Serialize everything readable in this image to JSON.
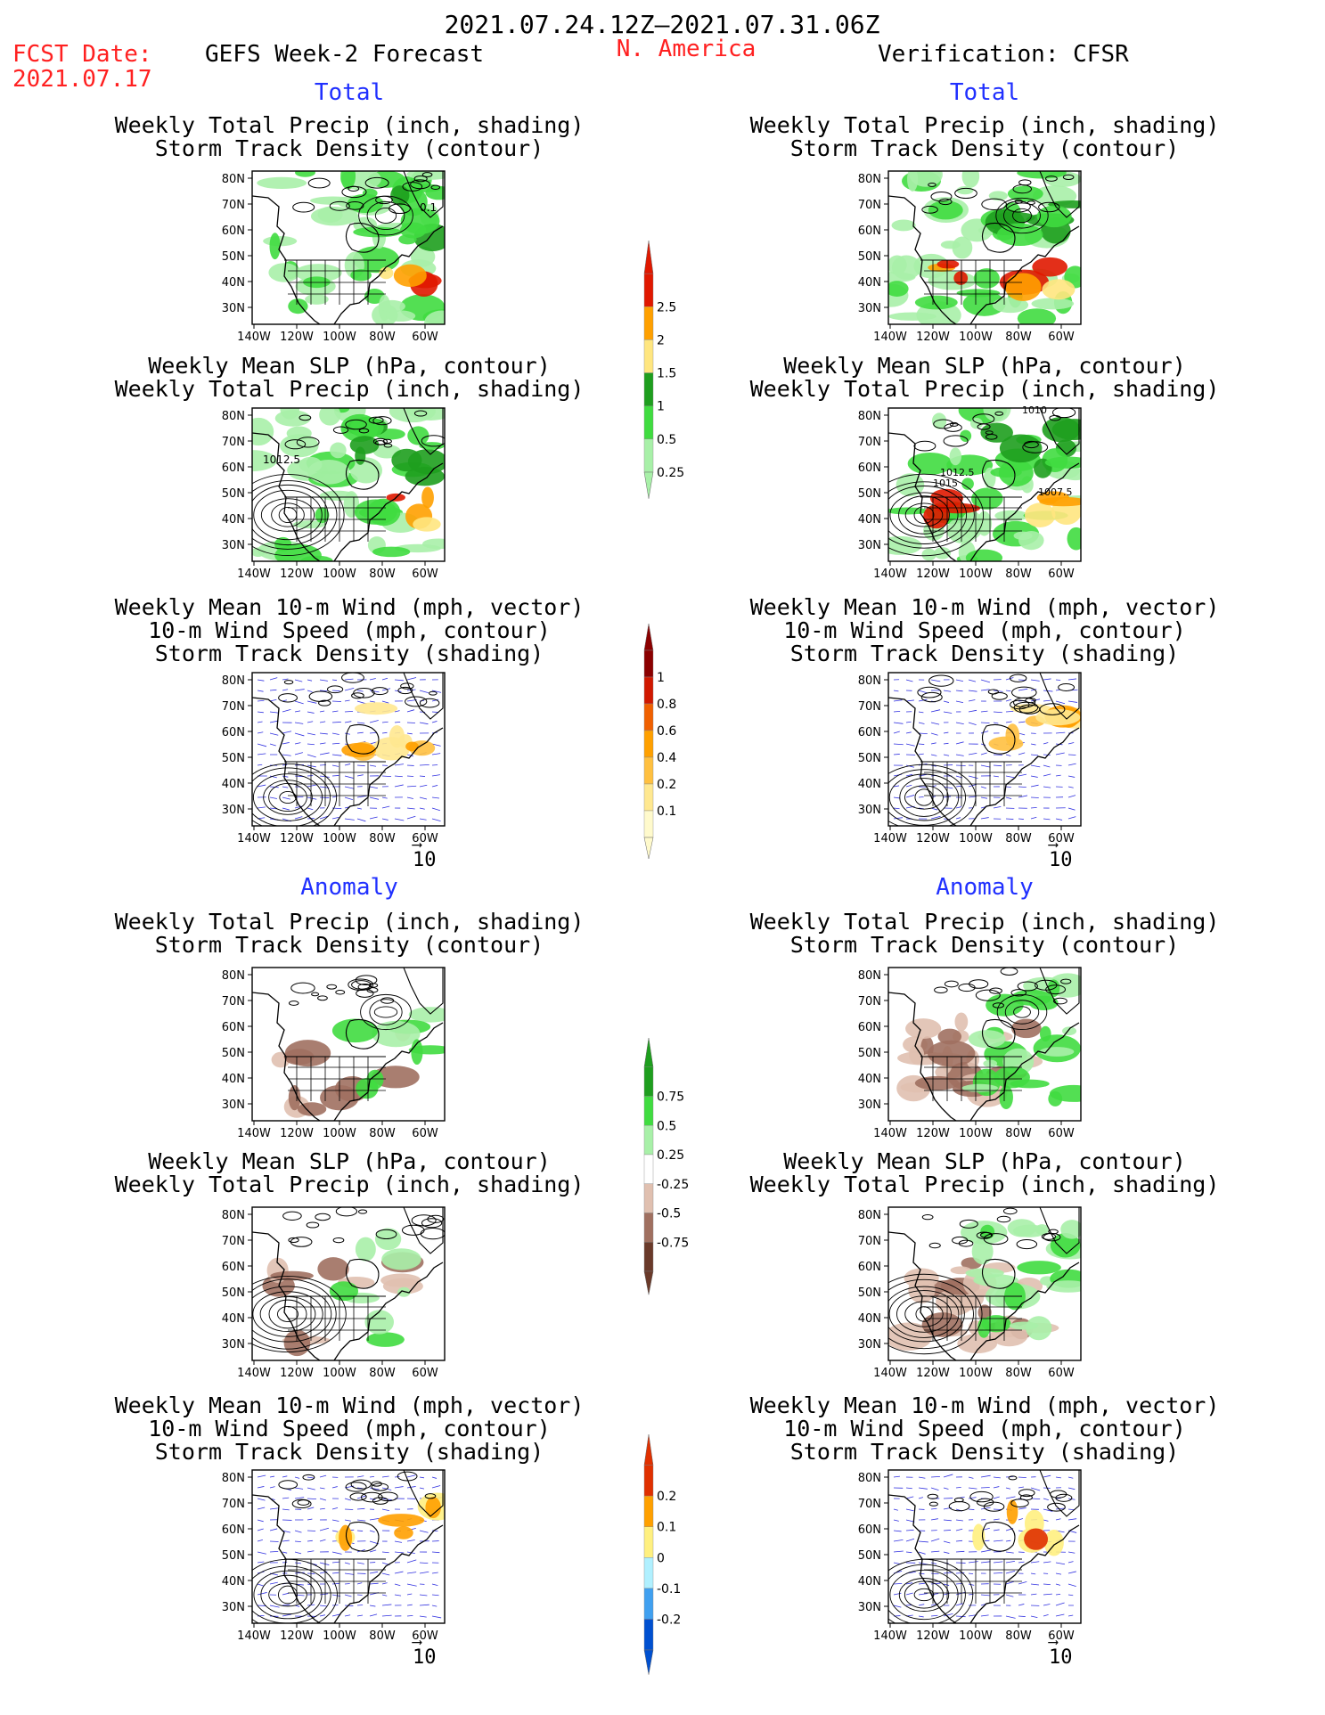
{
  "header": {
    "period": "2021.07.24.12Z–2021.07.31.06Z",
    "fcst_label": "FCST Date:",
    "fcst_date": "2021.07.17",
    "model": "GEFS Week-2 Forecast",
    "region": "N. America",
    "verification": "Verification: CFSR"
  },
  "sections": {
    "total": "Total",
    "anomaly": "Anomaly"
  },
  "panel_titles": {
    "precip_track": [
      "Weekly Total Precip (inch, shading)",
      "Storm Track Density (contour)"
    ],
    "slp_precip": [
      "Weekly Mean SLP (hPa, contour)",
      "Weekly Total Precip (inch, shading)"
    ],
    "wind_track": [
      "Weekly Mean 10-m Wind (mph, vector)",
      "10-m Wind Speed (mph, contour)",
      "Storm Track Density (shading)"
    ]
  },
  "axes": {
    "lat_ticks": [
      "80N",
      "70N",
      "60N",
      "50N",
      "40N",
      "30N"
    ],
    "lon_ticks": [
      "140W",
      "120W",
      "100W",
      "80W",
      "60W"
    ]
  },
  "vector_ref": "10",
  "contour_labels": {
    "fcst_track": "0.1",
    "fcst_slp": "1012.5",
    "ver_slp": [
      "1010",
      "1012.5",
      "1015",
      "1007.5"
    ]
  },
  "colorbars": [
    {
      "labels": [
        "2.5",
        "2",
        "1.5",
        "1",
        "0.5",
        "0.25"
      ],
      "colors": [
        "#e01800",
        "#ffa000",
        "#ffe680",
        "#1e9e1e",
        "#40dc40",
        "#a8f0a8"
      ]
    },
    {
      "labels": [
        "1",
        "0.8",
        "0.6",
        "0.4",
        "0.2",
        "0.1"
      ],
      "colors": [
        "#8b0000",
        "#d01800",
        "#f06000",
        "#ffa000",
        "#ffc040",
        "#ffe890",
        "#fffacc"
      ]
    },
    {
      "labels": [
        "0.75",
        "0.5",
        "0.25",
        "-0.25",
        "-0.5",
        "-0.75"
      ],
      "colors": [
        "#1e9e1e",
        "#40dc40",
        "#a8f0a8",
        "#ffffff",
        "#e0c0b0",
        "#a07060",
        "#6a3a2a"
      ]
    },
    {
      "labels": [
        "0.2",
        "0.1",
        "0",
        "-0.1",
        "-0.2"
      ],
      "colors": [
        "#e03000",
        "#ffa000",
        "#fff080",
        "#b0f0ff",
        "#40a0f0",
        "#0050d0"
      ]
    }
  ]
}
